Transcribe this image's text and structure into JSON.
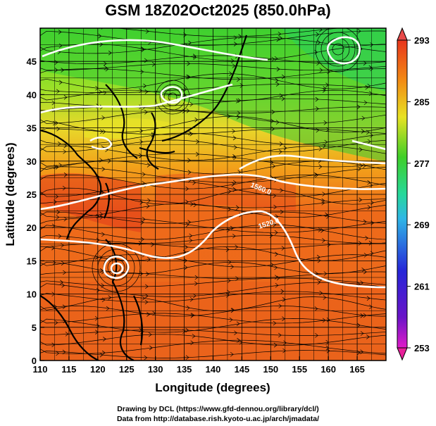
{
  "title": "GSM 18Z02Oct2025 (850.0hPa)",
  "xlabel": "Longitude (degrees)",
  "ylabel": "Latitude  (degrees)",
  "credits": {
    "line1": "Drawing by DCL (https://www.gfd-dennou.org/library/dcl/)",
    "line2": "Data from http://database.rish.kyoto-u.ac.jp/arch/jmadata/"
  },
  "x_ticks": [
    "110",
    "115",
    "120",
    "125",
    "130",
    "135",
    "140",
    "145",
    "150",
    "155",
    "160",
    "165"
  ],
  "y_ticks": [
    "0",
    "5",
    "10",
    "15",
    "20",
    "25",
    "30",
    "35",
    "40",
    "45"
  ],
  "colorbar_ticks": [
    "293",
    "285",
    "277",
    "269",
    "261",
    "253"
  ],
  "contour_labels": [
    "1560.0",
    "1520.0"
  ],
  "chart_data": {
    "type": "heatmap",
    "title": "GSM 18Z02Oct2025 (850.0hPa)",
    "xlabel": "Longitude (degrees)",
    "ylabel": "Latitude  (degrees)",
    "xlim": [
      110,
      170
    ],
    "ylim": [
      0,
      50
    ],
    "colorbar": {
      "min": 253,
      "max": 293,
      "ticks": [
        253,
        261,
        269,
        277,
        285,
        293
      ]
    },
    "shading_field": "temperature",
    "contour_field": "geopotential height",
    "contour_labels": [
      "1560.0",
      "1520.0"
    ],
    "overlay": "streamlines of wind",
    "grid": true
  },
  "colors": {
    "warm": "#e8351c",
    "orange": "#f28a14",
    "yellow": "#e8e224",
    "green": "#3fcf28",
    "cyan": "#2fb6e6",
    "blue": "#2626d8",
    "magenta": "#e01cc8",
    "contour": "#ffffff",
    "coast": "#000000"
  }
}
